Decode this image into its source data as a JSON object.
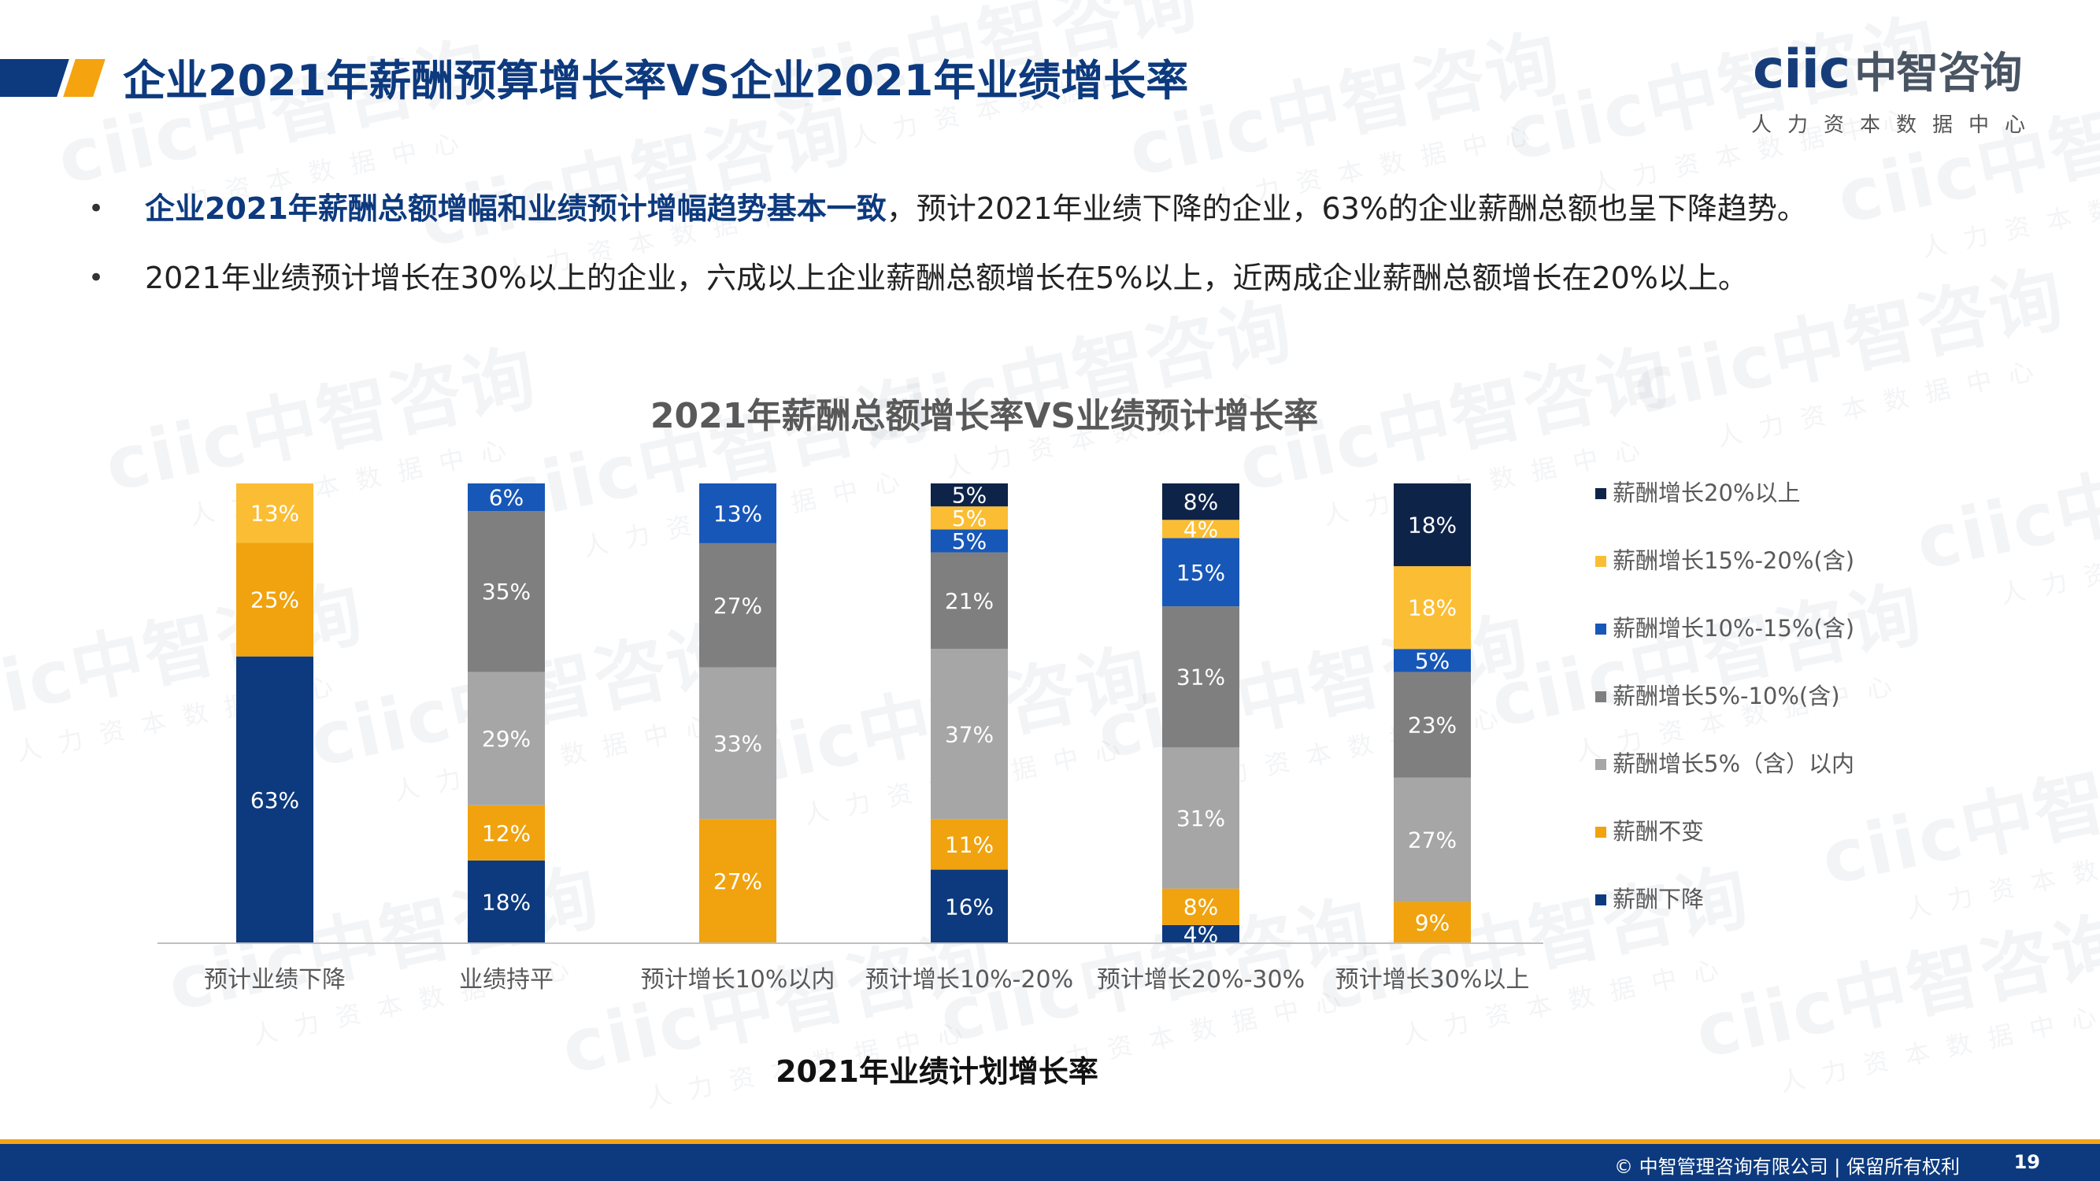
{
  "header": {
    "title": "企业2021年薪酬预算增长率VS企业2021年业绩增长率"
  },
  "logo": {
    "main": "ciic",
    "zh": "中智咨询",
    "tagline": "人力资本数据中心"
  },
  "watermark": {
    "main": "ciic中智咨询",
    "tagline": "人力资本数据中心"
  },
  "bullets": [
    {
      "highlight": "企业2021年薪酬总额增幅和业绩预计增幅趋势基本一致",
      "text": "，预计2021年业绩下降的企业，63%的企业薪酬总额也呈下降趋势。"
    },
    {
      "highlight": "",
      "text": "2021年业绩预计增长在30%以上的企业，六成以上企业薪酬总额增长在5%以上，近两成企业薪酬总额增长在20%以上。"
    }
  ],
  "chart_data": {
    "type": "bar",
    "stacked": true,
    "percent_stacked": true,
    "title": "2021年薪酬总额增长率VS业绩预计增长率",
    "xlabel": "2021年业绩计划增长率",
    "ylabel": "",
    "ylim": [
      0,
      100
    ],
    "grid": false,
    "legend_position": "right",
    "categories": [
      "预计业绩下降",
      "业绩持平",
      "预计增长10%以内",
      "预计增长10%-20%",
      "预计增长20%-30%",
      "预计增长30%以上"
    ],
    "series": [
      {
        "name": "薪酬下降",
        "color": "#0d3a7e",
        "values": [
          63,
          18,
          0,
          16,
          4,
          0
        ]
      },
      {
        "name": "薪酬不变",
        "color": "#f0a30f",
        "values": [
          25,
          12,
          27,
          11,
          8,
          9
        ]
      },
      {
        "name": "薪酬增长5%（含）以内",
        "color": "#a6a6a6",
        "values": [
          0,
          29,
          33,
          37,
          31,
          27
        ]
      },
      {
        "name": "薪酬增长5%-10%(含)",
        "color": "#7f7f7f",
        "values": [
          0,
          35,
          27,
          21,
          31,
          23
        ]
      },
      {
        "name": "薪酬增长10%-15%(含)",
        "color": "#1757b8",
        "values": [
          0,
          6,
          13,
          5,
          15,
          5
        ]
      },
      {
        "name": "薪酬增长15%-20%(含)",
        "color": "#fbbd33",
        "values": [
          13,
          0,
          0,
          5,
          4,
          18
        ]
      },
      {
        "name": "薪酬增长20%以上",
        "color": "#0e2348",
        "values": [
          0,
          0,
          0,
          5,
          8,
          18
        ]
      }
    ],
    "legend_order": [
      "薪酬增长20%以上",
      "薪酬增长15%-20%(含)",
      "薪酬增长10%-15%(含)",
      "薪酬增长5%-10%(含)",
      "薪酬增长5%（含）以内",
      "薪酬不变",
      "薪酬下降"
    ]
  },
  "footer": {
    "copyright": "© 中智管理咨询有限公司 | 保留所有权利",
    "page": "19"
  }
}
